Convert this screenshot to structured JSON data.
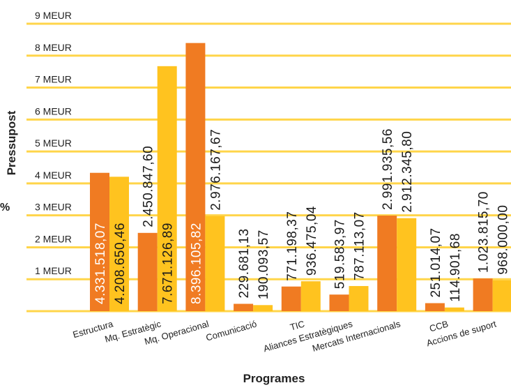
{
  "chart_data": {
    "type": "bar",
    "xlabel": "Programes",
    "ylabel": "Pressupost",
    "side_label": "%",
    "ylim": [
      0,
      9000000
    ],
    "y_ticks": [
      {
        "value": 1000000,
        "label": "1 MEUR"
      },
      {
        "value": 2000000,
        "label": "2 MEUR"
      },
      {
        "value": 3000000,
        "label": "3 MEUR"
      },
      {
        "value": 4000000,
        "label": "4 MEUR"
      },
      {
        "value": 5000000,
        "label": "5 MEUR"
      },
      {
        "value": 6000000,
        "label": "6 MEUR"
      },
      {
        "value": 7000000,
        "label": "7 MEUR"
      },
      {
        "value": 8000000,
        "label": "8 MEUR"
      },
      {
        "value": 9000000,
        "label": "9 MEUR"
      }
    ],
    "grid": true,
    "legend": "none",
    "categories": [
      "Estructura",
      "Mq. Estratègic",
      "Mq. Operacional",
      "Comunicació",
      "TIC",
      "Aliances Estratègiques",
      "Mercats Internacionals",
      "CCB",
      "Accions de suport"
    ],
    "series": [
      {
        "color": "#f07b22",
        "values": [
          4331518.07,
          2450847.6,
          8396105.82,
          229681.13,
          771198.37,
          519583.97,
          2991935.56,
          251014.07,
          1023815.7
        ],
        "labels": [
          "4.331.518,07",
          "2.450.847,60",
          "8.396.105,82",
          "229.681,13",
          "771.198,37",
          "519.583,97",
          "2.991.935,56",
          "251.014,07",
          "1.023.815,70"
        ]
      },
      {
        "color": "#ffc31f",
        "values": [
          4208650.46,
          7671126.89,
          2976167.67,
          190093.57,
          936475.04,
          787113.07,
          2912345.8,
          114901.68,
          968000.0
        ],
        "labels": [
          "4.208.650,46",
          "7.671.126,89",
          "2.976.167,67",
          "190.093,57",
          "936.475,04",
          "787.113,07",
          "2.912.345,80",
          "114.901,68",
          "968.000,00"
        ]
      }
    ],
    "grid_color": "#ffd54a",
    "label_color_dark": "#1a1a1a",
    "label_color_light": "#ffffff"
  }
}
